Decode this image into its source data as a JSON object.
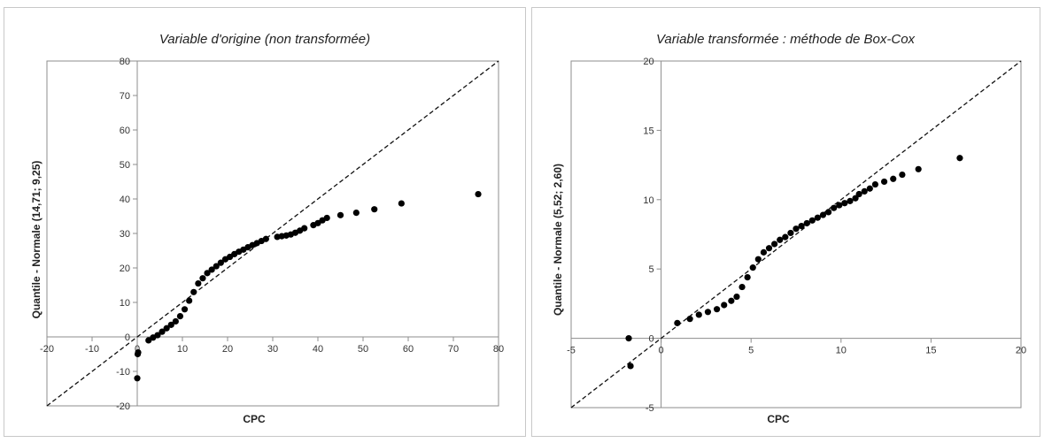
{
  "chart_data": [
    {
      "type": "scatter",
      "title": "Variable d'origine (non transformée)",
      "xlabel": "CPC",
      "ylabel": "Quantile - Normale (14,71; 9,25)",
      "xlim": [
        -20,
        80
      ],
      "ylim": [
        -20,
        80
      ],
      "x_ticks": [
        -20,
        -10,
        0,
        10,
        20,
        30,
        40,
        50,
        60,
        70,
        80
      ],
      "y_ticks": [
        -20,
        -10,
        0,
        10,
        20,
        30,
        40,
        50,
        60,
        70,
        80
      ],
      "grid": false,
      "reference_line": "y = x (dashed)",
      "marker_color": "#000000",
      "points": [
        [
          0.0,
          -12.0
        ],
        [
          0.1,
          -5.0
        ],
        [
          0.2,
          -4.5
        ],
        [
          2.5,
          -1.0
        ],
        [
          3.5,
          -0.2
        ],
        [
          4.5,
          0.5
        ],
        [
          5.5,
          1.5
        ],
        [
          6.5,
          2.5
        ],
        [
          7.5,
          3.5
        ],
        [
          8.5,
          4.5
        ],
        [
          9.5,
          6.0
        ],
        [
          10.5,
          8.0
        ],
        [
          11.5,
          10.5
        ],
        [
          12.5,
          13.0
        ],
        [
          13.5,
          15.5
        ],
        [
          14.5,
          17.0
        ],
        [
          15.5,
          18.5
        ],
        [
          16.5,
          19.5
        ],
        [
          17.5,
          20.5
        ],
        [
          18.5,
          21.5
        ],
        [
          19.5,
          22.5
        ],
        [
          20.5,
          23.2
        ],
        [
          21.5,
          24.0
        ],
        [
          22.5,
          24.7
        ],
        [
          23.5,
          25.3
        ],
        [
          24.5,
          26.0
        ],
        [
          25.5,
          26.6
        ],
        [
          26.5,
          27.2
        ],
        [
          27.5,
          27.8
        ],
        [
          28.5,
          28.4
        ],
        [
          31.0,
          29.0
        ],
        [
          32.0,
          29.2
        ],
        [
          33.0,
          29.4
        ],
        [
          34.0,
          29.7
        ],
        [
          35.0,
          30.2
        ],
        [
          36.0,
          30.8
        ],
        [
          37.0,
          31.5
        ],
        [
          39.0,
          32.4
        ],
        [
          40.0,
          33.0
        ],
        [
          41.0,
          33.8
        ],
        [
          42.0,
          34.5
        ],
        [
          45.0,
          35.3
        ],
        [
          48.5,
          36.0
        ],
        [
          52.5,
          37.0
        ],
        [
          58.5,
          38.7
        ],
        [
          75.5,
          41.4
        ]
      ]
    },
    {
      "type": "scatter",
      "title": "Variable transformée : méthode de Box-Cox",
      "xlabel": "CPC",
      "ylabel": "Quantile - Normale (5,52; 2,60)",
      "xlim": [
        -5,
        20
      ],
      "ylim": [
        -5,
        20
      ],
      "x_ticks": [
        -5,
        0,
        5,
        10,
        15,
        20
      ],
      "y_ticks": [
        -5,
        0,
        5,
        10,
        15,
        20
      ],
      "grid": false,
      "reference_line": "y = x (dashed)",
      "marker_color": "#000000",
      "points": [
        [
          -1.8,
          0.0
        ],
        [
          -1.7,
          -2.0
        ],
        [
          0.9,
          1.1
        ],
        [
          1.6,
          1.4
        ],
        [
          2.1,
          1.7
        ],
        [
          2.6,
          1.9
        ],
        [
          3.1,
          2.1
        ],
        [
          3.5,
          2.4
        ],
        [
          3.9,
          2.7
        ],
        [
          4.2,
          3.0
        ],
        [
          4.5,
          3.7
        ],
        [
          4.8,
          4.4
        ],
        [
          5.1,
          5.1
        ],
        [
          5.4,
          5.7
        ],
        [
          5.7,
          6.2
        ],
        [
          6.0,
          6.5
        ],
        [
          6.3,
          6.8
        ],
        [
          6.6,
          7.1
        ],
        [
          6.9,
          7.3
        ],
        [
          7.2,
          7.6
        ],
        [
          7.5,
          7.9
        ],
        [
          7.8,
          8.1
        ],
        [
          8.1,
          8.3
        ],
        [
          8.4,
          8.5
        ],
        [
          8.7,
          8.7
        ],
        [
          9.0,
          8.9
        ],
        [
          9.3,
          9.1
        ],
        [
          9.6,
          9.4
        ],
        [
          9.9,
          9.6
        ],
        [
          10.2,
          9.75
        ],
        [
          10.5,
          9.9
        ],
        [
          10.8,
          10.1
        ],
        [
          11.0,
          10.4
        ],
        [
          11.3,
          10.6
        ],
        [
          11.6,
          10.8
        ],
        [
          11.9,
          11.1
        ],
        [
          12.4,
          11.3
        ],
        [
          12.9,
          11.5
        ],
        [
          13.4,
          11.8
        ],
        [
          14.3,
          12.2
        ],
        [
          16.6,
          13.0
        ]
      ]
    }
  ]
}
